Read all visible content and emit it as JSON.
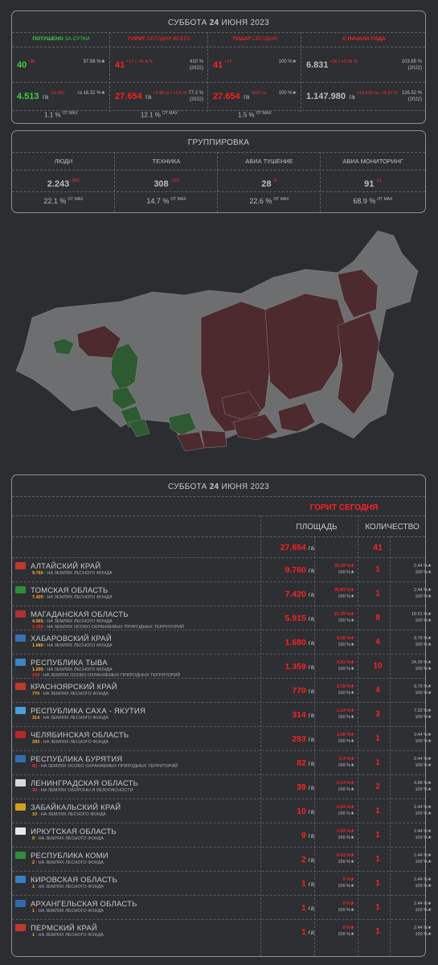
{
  "header": {
    "day_prefix": "СУББОТА",
    "day_num": "24",
    "day_suffix": "ИЮНЯ 2023"
  },
  "stats": {
    "cols": [
      {
        "label_a": "ПОТУШЕНО",
        "label_b": "ЗА СУТКИ",
        "color": "#3ecf3e"
      },
      {
        "label_a": "ГОРИТ",
        "label_b": "СЕГОДНЯ ВСЕГО",
        "color": "#ff2020"
      },
      {
        "label_a": "ТУШАТ",
        "label_b": "СЕГОДНЯ",
        "color": "#ff2020"
      },
      {
        "label_a": "С НАЧАЛА ГОДА",
        "label_b": "",
        "color": "#ff2020"
      }
    ],
    "count_row": [
      {
        "main": "40",
        "sup": "-38",
        "right1": "97.56 %★",
        "right2": ""
      },
      {
        "main": "41",
        "sup": "+17 / -41.4 %",
        "right1": "410 %",
        "right2": "(2022)"
      },
      {
        "main": "41",
        "sup": "+17",
        "right1": "100 %★",
        "right2": ""
      },
      {
        "main": "6.831",
        "sup": "+26 / +0.39 %",
        "right1": "103.85 %",
        "right2": "(2022)"
      }
    ],
    "area_row": [
      {
        "main": "4.513",
        "unit": "га",
        "sup": "-12.951",
        "right1": "га 16.32 %★",
        "right2": ""
      },
      {
        "main": "27.654",
        "unit": "га",
        "sup": "+5.86 га / +2.6 %",
        "right1": "77.2 %",
        "right2": "(2022)"
      },
      {
        "main": "27.654",
        "unit": "га",
        "sup": "+637 га",
        "right1": "100 %★",
        "right2": ""
      },
      {
        "main": "1.147.980",
        "unit": "га",
        "sup": "+10.415 га / +0.91 %",
        "right1": "126.52 %",
        "right2": "(2022)"
      }
    ],
    "max_row": [
      "1.1 %",
      "12.1 %",
      "1.5 %"
    ],
    "max_label": "ОТ MAX"
  },
  "group": {
    "title": "ГРУППИРОВКА",
    "cols": [
      {
        "label": "ЛЮДИ",
        "value": "2.243",
        "delta": "-961",
        "pct": "22.1 %"
      },
      {
        "label": "ТЕХНИКА",
        "value": "308",
        "delta": "-123",
        "pct": "14.7 %"
      },
      {
        "label": "АВИА ТУШЕНИЕ",
        "value": "28",
        "delta": "-4",
        "pct": "22.6 %"
      },
      {
        "label": "АВИА МОНИТОРИНГ",
        "value": "91",
        "delta": "-11",
        "pct": "68.9 %"
      }
    ],
    "max_label": "ОТ MAX"
  },
  "map": {
    "colors": {
      "base": "#6d6e70",
      "burning": "#4d2a2d",
      "extinguished": "#2e5a32",
      "border": "#8a8a8a"
    }
  },
  "table": {
    "header": {
      "day_prefix": "СУББОТА",
      "day_num": "24",
      "day_suffix": "ИЮНЯ 2023"
    },
    "subtitle": "ГОРИТ СЕГОДНЯ",
    "col_area": "ПЛОЩАДЬ",
    "col_count": "КОЛИЧЕСТВО",
    "total_area": "27.654",
    "total_unit": "га",
    "total_count": "41",
    "rows": [
      {
        "name": "АЛТАЙСКИЙ КРАЙ",
        "subs": [
          {
            "n": "9.760",
            "t": "НА ЗЕМЛЯХ ЛЕСНОГО ФОНДА",
            "red": false
          }
        ],
        "area": "9.760",
        "p1": "35.29 %★",
        "p2": "100 %★",
        "count": "1",
        "c1": "2.44 %★",
        "c2": "100 %★",
        "flag": "#c0392b"
      },
      {
        "name": "ТОМСКАЯ ОБЛАСТЬ",
        "subs": [
          {
            "n": "7.420",
            "t": "НА ЗЕМЛЯХ ЛЕСНОГО ФОНДА",
            "red": false
          }
        ],
        "area": "7.420",
        "p1": "26.83 %★",
        "p2": "100 %★",
        "count": "1",
        "c1": "2.44 %★",
        "c2": "100 %★",
        "flag": "#2e8b3a"
      },
      {
        "name": "МАГАДАНСКАЯ ОБЛАСТЬ",
        "subs": [
          {
            "n": "4.565",
            "t": "НА ЗЕМЛЯХ ЛЕСНОГО ФОНДА",
            "red": false
          },
          {
            "n": "1.350",
            "t": "НА ЗЕМЛЯХ ОСОБО ОХРАНЯЕМЫХ ПРИРОДНЫХ ТЕРРИТОРИЙ",
            "red": true
          }
        ],
        "area": "5.915",
        "p1": "21.39 %★",
        "p2": "100 %★",
        "count": "8",
        "c1": "19.51 %★",
        "c2": "100 %★",
        "flag": "#b03030"
      },
      {
        "name": "ХАБАРОВСКИЙ КРАЙ",
        "subs": [
          {
            "n": "1.680",
            "t": "НА ЗЕМЛЯХ ЛЕСНОГО ФОНДА",
            "red": false
          }
        ],
        "area": "1.680",
        "p1": "6.08 %★",
        "p2": "100 %★",
        "count": "4",
        "c1": "9.76 %★",
        "c2": "100 %★",
        "flag": "#3a6fb8"
      },
      {
        "name": "РЕСПУБЛИКА ТЫВА",
        "subs": [
          {
            "n": "1.200",
            "t": "НА ЗЕМЛЯХ ЛЕСНОГО ФОНДА",
            "red": false
          },
          {
            "n": "159",
            "t": "НА ЗЕМЛЯХ ОСОБО ОХРАНЯЕМЫХ ПРИРОДНЫХ ТЕРРИТОРИЙ",
            "red": true
          }
        ],
        "area": "1.359",
        "p1": "4.91 %★",
        "p2": "100 %★",
        "count": "10",
        "c1": "24.39 %★",
        "c2": "100 %★",
        "flag": "#3a86c8"
      },
      {
        "name": "КРАСНОЯРСКИЙ КРАЙ",
        "subs": [
          {
            "n": "770",
            "t": "НА ЗЕМЛЯХ ЛЕСНОГО ФОНДА",
            "red": false
          }
        ],
        "area": "770",
        "p1": "2.78 %★",
        "p2": "100 %★",
        "count": "4",
        "c1": "9.76 %★",
        "c2": "100 %★",
        "flag": "#c0392b"
      },
      {
        "name": "РЕСПУБЛИКА САХА - ЯКУТИЯ",
        "subs": [
          {
            "n": "314",
            "t": "НА ЗЕМЛЯХ ЛЕСНОГО ФОНДА",
            "red": false
          }
        ],
        "area": "314",
        "p1": "1.14 %★",
        "p2": "100 %★",
        "count": "3",
        "c1": "7.32 %★",
        "c2": "100 %★",
        "flag": "#4aa0d8"
      },
      {
        "name": "ЧЕЛЯБИНСКАЯ ОБЛАСТЬ",
        "subs": [
          {
            "n": "293",
            "t": "НА ЗЕМЛЯХ ЛЕСНОГО ФОНДА",
            "red": false
          }
        ],
        "area": "293",
        "p1": "1.06 %★",
        "p2": "100 %★",
        "count": "1",
        "c1": "2.44 %★",
        "c2": "100 %★",
        "flag": "#b82828"
      },
      {
        "name": "РЕСПУБЛИКА БУРЯТИЯ",
        "subs": [
          {
            "n": "82",
            "t": "НА ЗЕМЛЯХ ОСОБО ОХРАНЯЕМЫХ ПРИРОДНЫХ ТЕРРИТОРИЙ",
            "red": true
          }
        ],
        "area": "82",
        "p1": "0.3 %★",
        "p2": "100 %★",
        "count": "1",
        "c1": "2.44 %★",
        "c2": "100 %★",
        "flag": "#2f6db5"
      },
      {
        "name": "ЛЕНИНГРАДСКАЯ ОБЛАСТЬ",
        "subs": [
          {
            "n": "39",
            "t": "НА ЗЕМЛЯХ ОБОРОНЫ И БЕЗОПАСНОСТИ",
            "red": true
          }
        ],
        "area": "39",
        "p1": "0.14 %★",
        "p2": "100 %★",
        "count": "2",
        "c1": "4.88 %★",
        "c2": "100 %★",
        "flag": "#d8d8d8"
      },
      {
        "name": "ЗАБАЙКАЛЬСКИЙ КРАЙ",
        "subs": [
          {
            "n": "10",
            "t": "НА ЗЕМЛЯХ ЛЕСНОГО ФОНДА",
            "red": false
          }
        ],
        "area": "10",
        "p1": "0.04 %★",
        "p2": "100 %★",
        "count": "1",
        "c1": "2.44 %★",
        "c2": "100 %★",
        "flag": "#d4a017"
      },
      {
        "name": "ИРКУТСКАЯ ОБЛАСТЬ",
        "subs": [
          {
            "n": "9",
            "t": "НА ЗЕМЛЯХ ЛЕСНОГО ФОНДА",
            "red": false
          }
        ],
        "area": "9",
        "p1": "0.03 %★",
        "p2": "100 %★",
        "count": "1",
        "c1": "2.44 %★",
        "c2": "100 %★",
        "flag": "#e8e8e8"
      },
      {
        "name": "РЕСПУБЛИКА КОМИ",
        "subs": [
          {
            "n": "2",
            "t": "НА ЗЕМЛЯХ ЛЕСНОГО ФОНДА",
            "red": false
          }
        ],
        "area": "2",
        "p1": "0.01 %★",
        "p2": "100 %★",
        "count": "1",
        "c1": "2.44 %★",
        "c2": "100 %★",
        "flag": "#2f8f3a"
      },
      {
        "name": "КИРОВСКАЯ ОБЛАСТЬ",
        "subs": [
          {
            "n": "1",
            "t": "НА ЗЕМЛЯХ ЛЕСНОГО ФОНДА",
            "red": false
          }
        ],
        "area": "1",
        "p1": "0 %★",
        "p2": "100 %★",
        "count": "1",
        "c1": "2.44 %★",
        "c2": "100 %★",
        "flag": "#3a7fc4"
      },
      {
        "name": "АРХАНГЕЛЬСКАЯ ОБЛАСТЬ",
        "subs": [
          {
            "n": "1",
            "t": "НА ЗЕМЛЯХ ЛЕСНОГО ФОНДА",
            "red": false
          }
        ],
        "area": "1",
        "p1": "0 %★",
        "p2": "100 %★",
        "count": "1",
        "c1": "2.44 %★",
        "c2": "100 %★",
        "flag": "#2d6ab0"
      },
      {
        "name": "ПЕРМСКИЙ КРАЙ",
        "subs": [
          {
            "n": "1",
            "t": "НА ЗЕМЛЯХ ЛЕСНОГО ФОНДА",
            "red": false
          }
        ],
        "area": "1",
        "p1": "0 %★",
        "p2": "100 %★",
        "count": "1",
        "c1": "2.44 %★",
        "c2": "100 %★",
        "flag": "#c0392b"
      }
    ]
  }
}
